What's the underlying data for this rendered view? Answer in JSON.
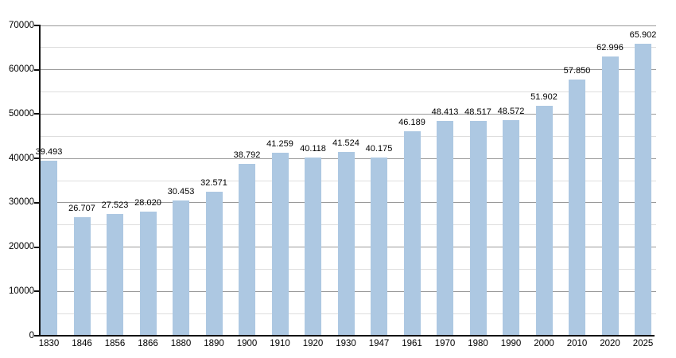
{
  "chart_data": {
    "type": "bar",
    "title": "",
    "xlabel": "",
    "ylabel": "",
    "categories": [
      "1830",
      "1846",
      "1856",
      "1866",
      "1880",
      "1890",
      "1900",
      "1910",
      "1920",
      "1930",
      "1947",
      "1961",
      "1970",
      "1980",
      "1990",
      "2000",
      "2010",
      "2020",
      "2025"
    ],
    "values": [
      39493,
      26707,
      27523,
      28020,
      30453,
      32571,
      38792,
      41259,
      40118,
      41524,
      40175,
      46189,
      48413,
      48517,
      48572,
      51902,
      57850,
      62996,
      65902
    ],
    "value_labels": [
      "39.493",
      "26.707",
      "27.523",
      "28.020",
      "30.453",
      "32.571",
      "38.792",
      "41.259",
      "40.118",
      "41.524",
      "40.175",
      "46.189",
      "48.413",
      "48.517",
      "48.572",
      "51.902",
      "57.850",
      "62.996",
      "65.902"
    ],
    "ylim": [
      0,
      70000
    ],
    "y_major_ticks": [
      0,
      10000,
      20000,
      30000,
      40000,
      50000,
      60000,
      70000
    ],
    "y_tick_labels": [
      "0",
      "10000",
      "20000",
      "30000",
      "40000",
      "50000",
      "60000",
      "70000"
    ],
    "grid": {
      "enabled": true,
      "major_step": 10000,
      "minor_step": 5000
    },
    "legend": null,
    "colors": {
      "bar_fill": "#adc8e2",
      "grid_major": "#9a9a9a",
      "grid_minor": "#dedede",
      "axis": "#111111",
      "text": "#000000",
      "background": "#ffffff"
    }
  }
}
